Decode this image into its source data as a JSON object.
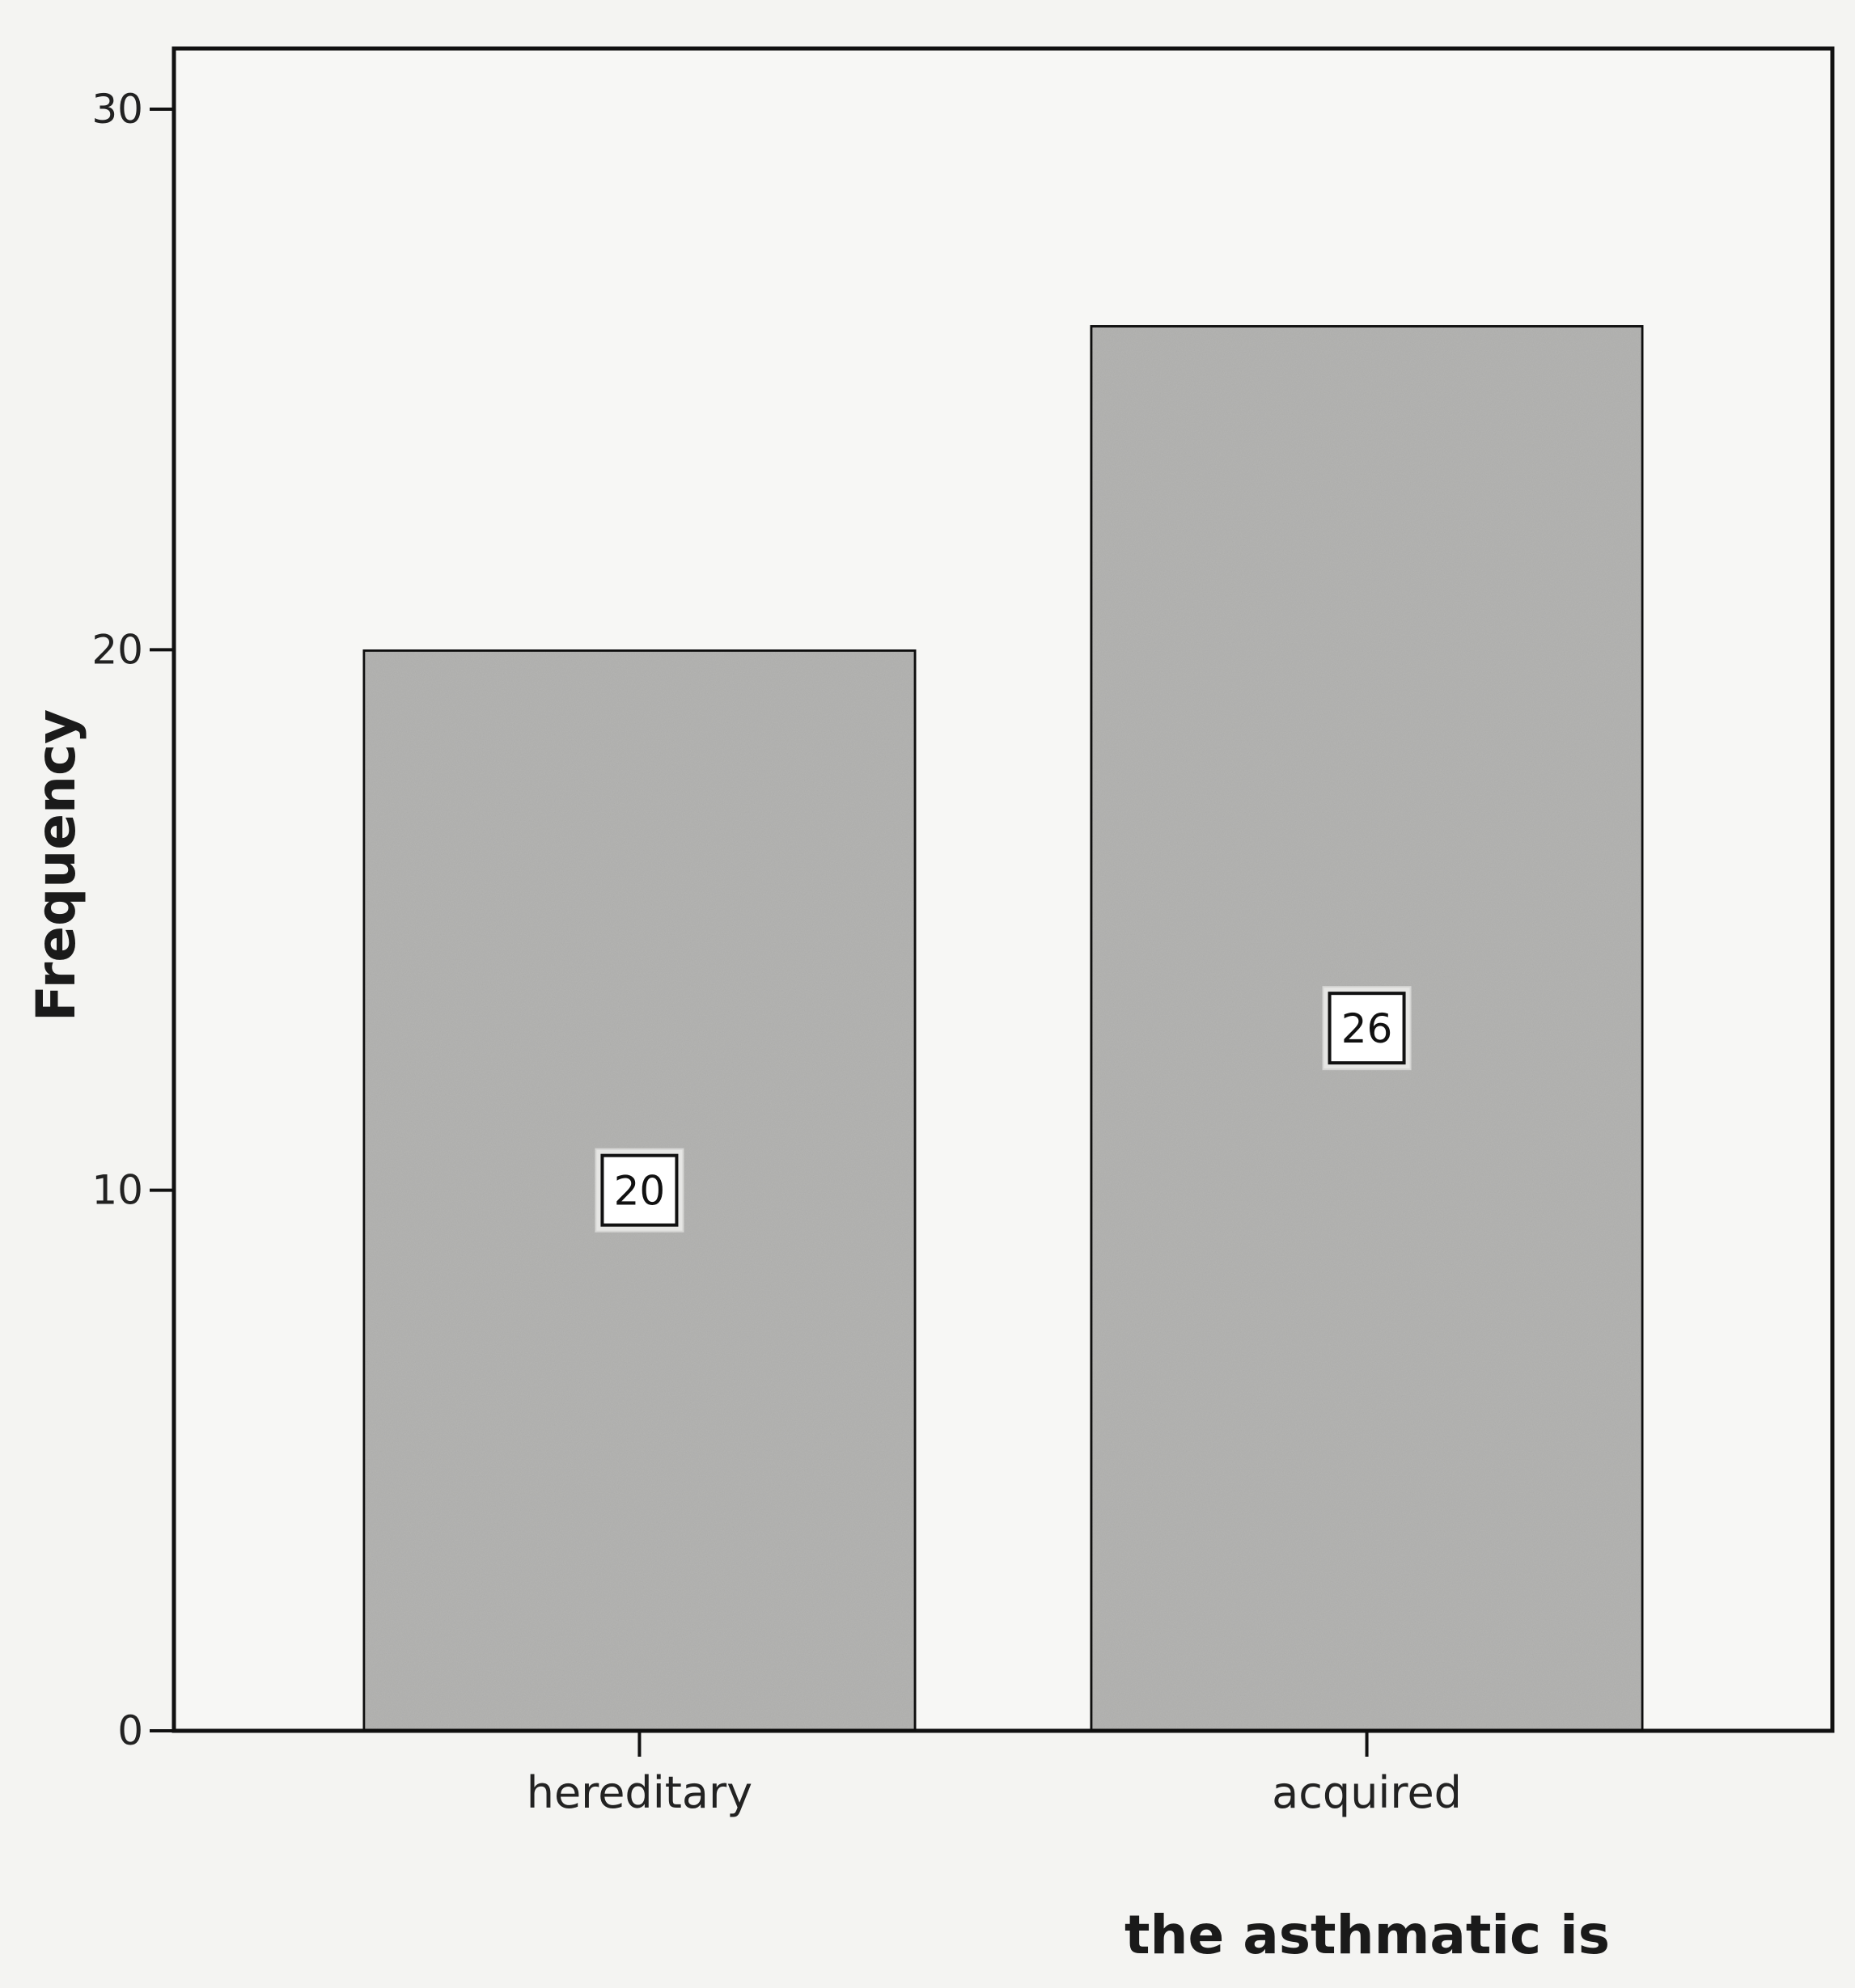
{
  "chart_data": {
    "type": "bar",
    "categories": [
      "hereditary",
      "acquired"
    ],
    "values": [
      20,
      26
    ],
    "data_labels": [
      "20",
      "26"
    ],
    "xlabel": "the asthmatic is",
    "ylabel": "Frequency",
    "ylim": [
      0,
      30
    ],
    "yticks": [
      0,
      10,
      20,
      30
    ],
    "ytick_labels": [
      "0",
      "10",
      "20",
      "30"
    ],
    "grid": false,
    "legend": "none",
    "bar_color": "#b4b4b2",
    "bar_edge_color": "#111111",
    "frame_color": "#111111"
  }
}
